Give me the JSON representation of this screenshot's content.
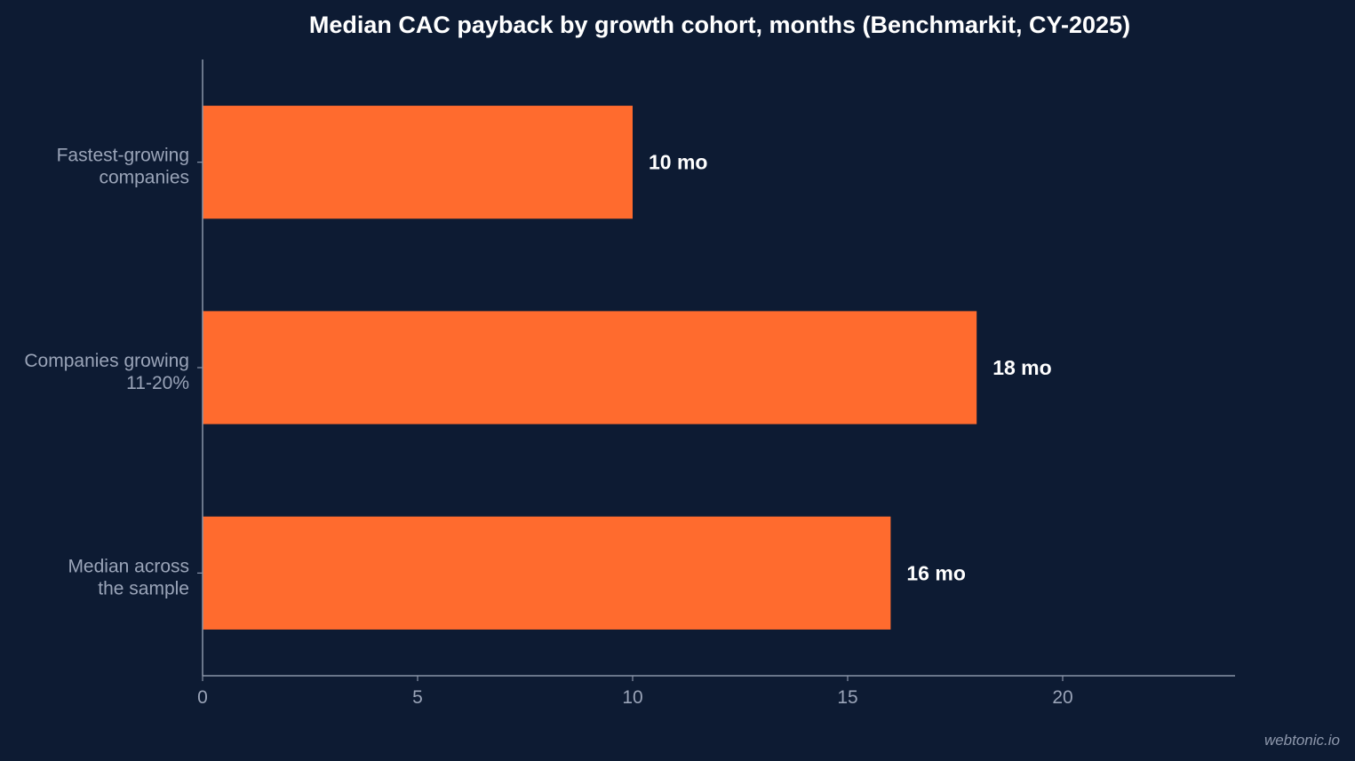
{
  "chart_data": {
    "type": "bar",
    "orientation": "horizontal",
    "title": "Median CAC payback by growth cohort, months (Benchmarkit, CY-2025)",
    "xlabel": "",
    "ylabel": "",
    "categories": [
      [
        "Fastest-growing",
        "companies"
      ],
      [
        "Companies growing",
        "11-20%"
      ],
      [
        "Median across",
        "the sample"
      ]
    ],
    "values": [
      10,
      18,
      16
    ],
    "data_labels": [
      "10 mo",
      "18 mo",
      "16 mo"
    ],
    "xlim": [
      0,
      24
    ],
    "xticks": [
      0,
      5,
      10,
      15,
      20
    ],
    "grid": false,
    "legend": "none",
    "colors": {
      "background": "#0d1b33",
      "bar": "#ff6b2e",
      "axis": "#8a94a8",
      "text": "#ffffff",
      "muted_text": "#9aa4b8"
    }
  },
  "watermark": "webtonic.io"
}
